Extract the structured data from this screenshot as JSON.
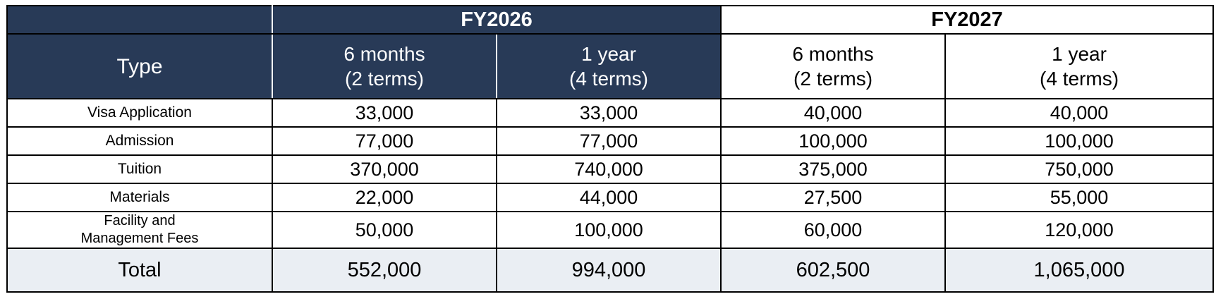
{
  "table": {
    "corner_label": "",
    "years": [
      "FY2026",
      "FY2027"
    ],
    "type_header": "Type",
    "period_headers": [
      {
        "line1": "6 months",
        "line2": "(2 terms)"
      },
      {
        "line1": "1 year",
        "line2": "(4 terms)"
      },
      {
        "line1": "6 months",
        "line2": "(2 terms)"
      },
      {
        "line1": "1 year",
        "line2": "(4 terms)"
      }
    ],
    "rows": [
      {
        "label_line1": "Visa Application",
        "label_line2": "",
        "values": [
          "33,000",
          "33,000",
          "40,000",
          "40,000"
        ]
      },
      {
        "label_line1": "Admission",
        "label_line2": "",
        "values": [
          "77,000",
          "77,000",
          "100,000",
          "100,000"
        ]
      },
      {
        "label_line1": "Tuition",
        "label_line2": "",
        "values": [
          "370,000",
          "740,000",
          "375,000",
          "750,000"
        ]
      },
      {
        "label_line1": "Materials",
        "label_line2": "",
        "values": [
          "22,000",
          "44,000",
          "27,500",
          "55,000"
        ]
      },
      {
        "label_line1": "Facility and",
        "label_line2": "Management Fees",
        "values": [
          "50,000",
          "100,000",
          "60,000",
          "120,000"
        ]
      }
    ],
    "total": {
      "label": "Total",
      "values": [
        "552,000",
        "994,000",
        "602,500",
        "1,065,000"
      ]
    }
  },
  "colors": {
    "header_dark": "#283a57",
    "header_text_dark": "#ffffff",
    "total_row_bg": "#eaeef3",
    "border": "#000000"
  }
}
